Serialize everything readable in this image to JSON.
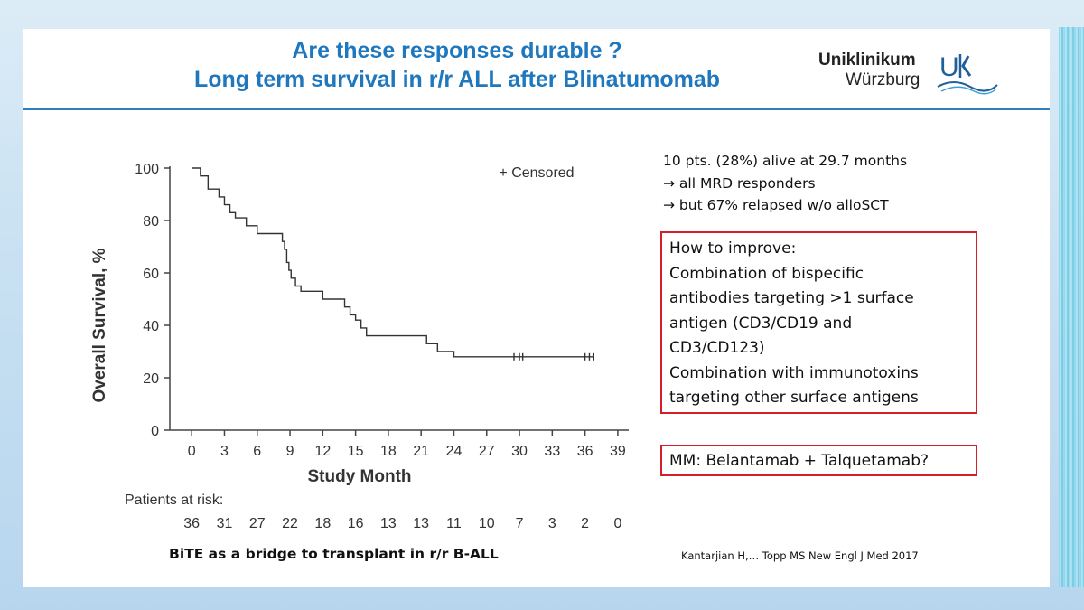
{
  "title": {
    "line1": "Are these responses durable ?",
    "line2": "Long term survival in r/r ALL after Blinatumomab"
  },
  "logo": {
    "line1": "Uniklinikum",
    "line2": "Würzburg",
    "mark": "UK"
  },
  "notes": [
    "10 pts. (28%) alive at 29.7 months",
    "→ all MRD responders",
    "→  but 67% relapsed w/o alloSCT"
  ],
  "improve_box": [
    "How to improve:",
    "Combination of bispecific",
    "antibodies targeting >1 surface",
    "antigen (CD3/CD19 and",
    "CD3/CD123)",
    "Combination with immunotoxins",
    "targeting other surface antigens"
  ],
  "mm_box": "MM: Belantamab + Talquetamab?",
  "caption": "BiTE as a bridge to transplant in r/r B-ALL",
  "citation": "Kantarjian H,… Topp MS New Engl J Med 2017",
  "colors": {
    "title": "#1f77bd",
    "box_border": "#d21f2a",
    "rule": "#2f7fbf"
  },
  "chart_data": {
    "type": "line",
    "xlabel": "Study Month",
    "ylabel": "Overall Survival, %",
    "xlim": [
      -2,
      40
    ],
    "ylim": [
      0,
      100
    ],
    "xticks": [
      0,
      3,
      6,
      9,
      12,
      15,
      18,
      21,
      24,
      27,
      30,
      33,
      36,
      39
    ],
    "yticks": [
      0,
      20,
      40,
      60,
      80,
      100
    ],
    "legend": "+ Censored",
    "step": true,
    "series": [
      {
        "x": [
          0,
          0.8,
          1.5,
          2.5,
          3,
          3.5,
          4,
          5,
          6,
          8.3,
          8.5,
          8.7,
          8.9,
          9.1,
          9.5,
          10,
          12,
          14,
          14.5,
          15,
          15.5,
          16,
          17,
          21.5,
          22.5,
          24,
          36.8
        ],
        "y": [
          100,
          97,
          92,
          89,
          86,
          83,
          81,
          78,
          75,
          72,
          69,
          64,
          61,
          58,
          55,
          53,
          50,
          47,
          44,
          42,
          39,
          36,
          36,
          33,
          30,
          28,
          28
        ]
      }
    ],
    "censored": [
      29.5,
      30,
      30.3,
      36,
      36.4,
      36.8
    ],
    "at_risk_label": "Patients at risk:",
    "at_risk": [
      36,
      31,
      27,
      22,
      18,
      16,
      13,
      13,
      11,
      10,
      7,
      3,
      2,
      0
    ]
  }
}
